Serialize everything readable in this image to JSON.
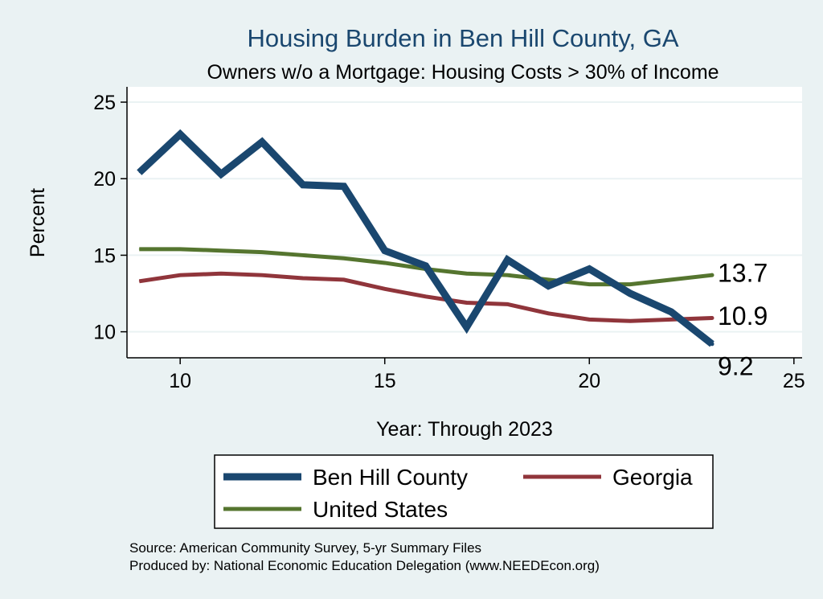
{
  "chart_data": {
    "type": "line",
    "title": "Housing Burden in Ben Hill County, GA",
    "subtitle": "Owners w/o a Mortgage: Housing Costs > 30% of Income",
    "xlabel": "Year: Through 2023",
    "ylabel": "Percent",
    "xlim": [
      8.7,
      25.2
    ],
    "ylim": [
      8.3,
      26
    ],
    "xticks": [
      10,
      15,
      20,
      25
    ],
    "yticks": [
      10,
      15,
      20,
      25
    ],
    "grid": true,
    "legend_position": "bottom",
    "x": [
      9,
      10,
      11,
      12,
      13,
      14,
      15,
      16,
      17,
      18,
      19,
      20,
      21,
      22,
      23
    ],
    "series": [
      {
        "name": "Ben Hill County",
        "color": "#1a476f",
        "width": 9,
        "values": [
          20.4,
          22.9,
          20.3,
          22.4,
          19.6,
          19.5,
          15.3,
          14.3,
          10.3,
          14.7,
          13.0,
          14.1,
          12.5,
          11.3,
          9.2
        ],
        "end_label": "9.2"
      },
      {
        "name": "Georgia",
        "color": "#90353b",
        "width": 5,
        "values": [
          13.3,
          13.7,
          13.8,
          13.7,
          13.5,
          13.4,
          12.8,
          12.3,
          11.9,
          11.8,
          11.2,
          10.8,
          10.7,
          10.8,
          10.9
        ],
        "end_label": "10.9"
      },
      {
        "name": "United States",
        "color": "#55752f",
        "width": 5,
        "values": [
          15.4,
          15.4,
          15.3,
          15.2,
          15.0,
          14.8,
          14.5,
          14.1,
          13.8,
          13.7,
          13.4,
          13.1,
          13.1,
          13.4,
          13.7
        ],
        "end_label": "13.7"
      }
    ],
    "source_lines": [
      "Source: American Community Survey, 5-yr Summary Files",
      "Produced by: National Economic Education Delegation (www.NEEDEcon.org)"
    ]
  }
}
